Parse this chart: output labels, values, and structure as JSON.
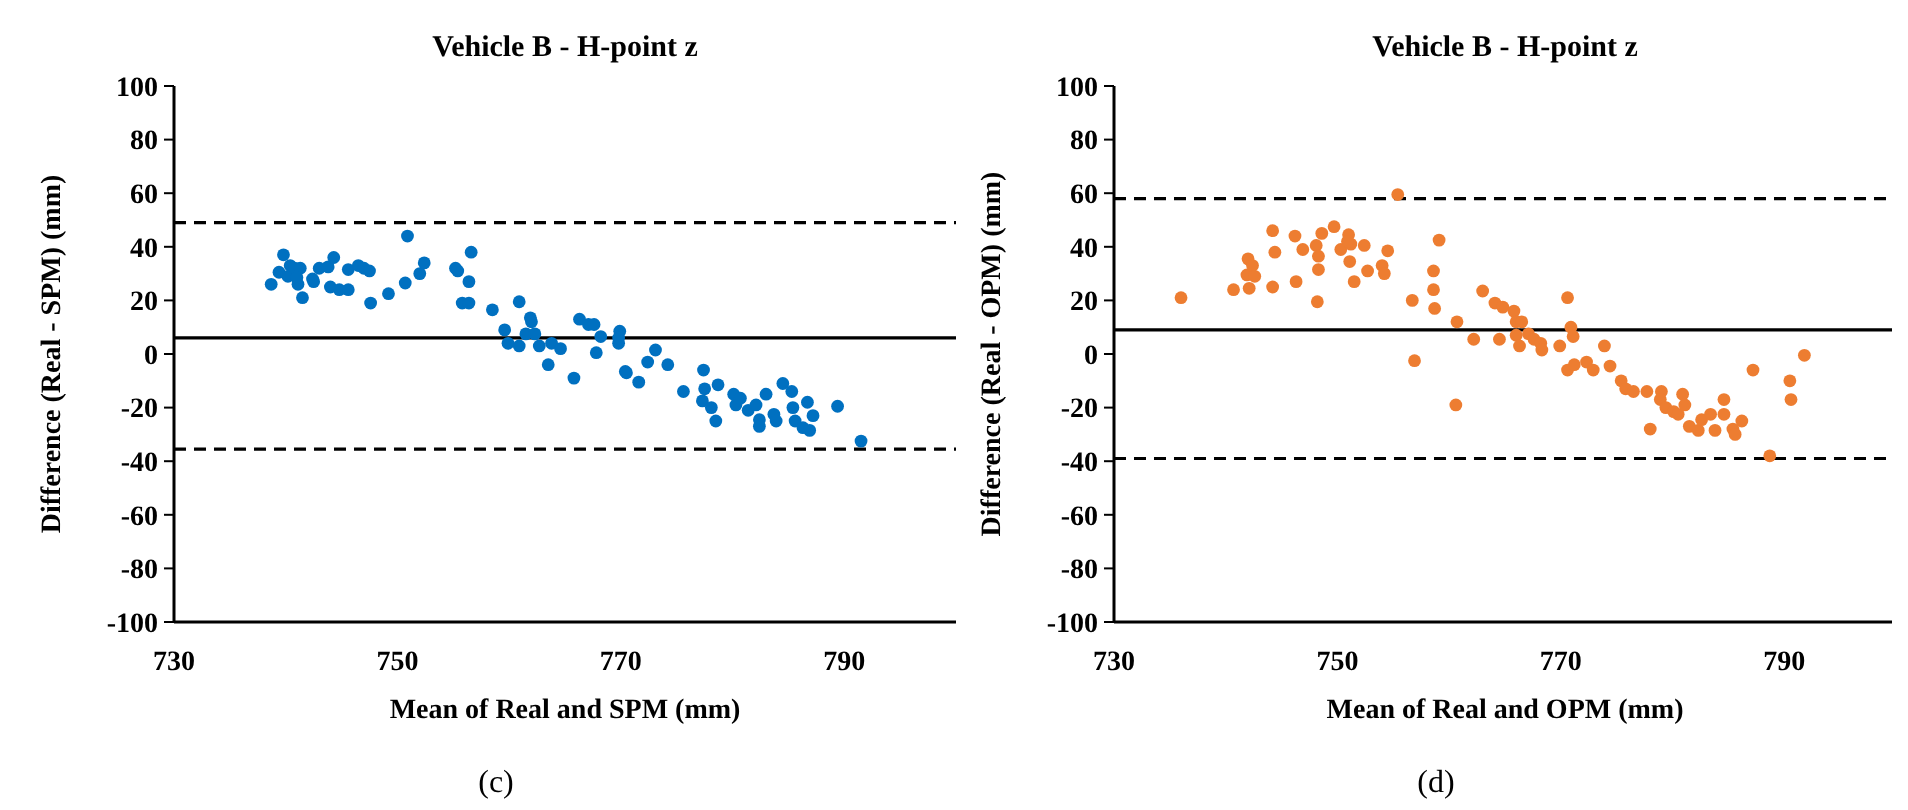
{
  "chart_data": [
    {
      "type": "scatter",
      "title": "Vehicle B - H-point z",
      "xlabel": "Mean of Real and SPM (mm)",
      "ylabel": "Difference (Real - SPM) (mm)",
      "annotations": [
        "(c)"
      ],
      "xlim": [
        730,
        800
      ],
      "xticks": [
        730,
        750,
        770,
        790
      ],
      "ylim": [
        -100,
        100
      ],
      "yticks": [
        -100,
        -80,
        -60,
        -40,
        -20,
        0,
        20,
        40,
        60,
        80,
        100
      ],
      "marker": "circle",
      "grid": false,
      "ref_lines": [
        {
          "axis": "y",
          "value": 49,
          "line_style": "dashed",
          "color": "#000000"
        },
        {
          "axis": "y",
          "value": 6,
          "line_style": "solid",
          "color": "#000000"
        },
        {
          "axis": "y",
          "value": -35.5,
          "line_style": "dashed",
          "color": "#000000"
        }
      ],
      "series": [
        {
          "color": "#0070c0",
          "x": [
            738.7,
            739.4,
            739.8,
            740.4,
            740.2,
            740.8,
            741.1,
            741.3,
            741.5,
            741,
            742.4,
            742.5,
            743,
            743.8,
            744.3,
            744,
            744.8,
            745.6,
            745.6,
            746.5,
            747,
            747.5,
            747.6,
            749.2,
            750.7,
            750.9,
            752,
            752.4,
            755.2,
            755.4,
            756.6,
            756.4,
            755.8,
            756.4,
            758.5,
            759.6,
            759.9,
            760.9,
            760.9,
            761.9,
            762,
            761.5,
            762.3,
            762.7,
            763.5,
            763.8,
            764.6,
            765.8,
            766.3,
            767.1,
            767.6,
            767.8,
            768.2,
            769.8,
            769.9,
            769.8,
            770.4,
            770.5,
            771.6,
            772.4,
            773.1,
            774.2,
            775.6,
            777.4,
            777.5,
            777.3,
            778.1,
            778.5,
            778.7,
            780.1,
            780.3,
            780.7,
            781.4,
            782.1,
            782.4,
            782.4,
            783,
            783.7,
            783.9,
            784.5,
            785.3,
            785.4,
            785.6,
            786.3,
            786.7,
            786.9,
            787.2,
            789.4,
            791.5
          ],
          "values": [
            26,
            30.5,
            37,
            33,
            29,
            32,
            26,
            32,
            21,
            28.5,
            28,
            27,
            32,
            32.5,
            36,
            25,
            24,
            24,
            31.5,
            33,
            32,
            31,
            19,
            22.5,
            26.5,
            44,
            30,
            34,
            32,
            31,
            38,
            27,
            19,
            19,
            16.5,
            9,
            4,
            19.5,
            3,
            13.5,
            12,
            7.5,
            7.5,
            3,
            -4,
            4,
            2,
            -9,
            13,
            11,
            11,
            0.5,
            6.5,
            4,
            8.5,
            6,
            -6.5,
            -7,
            -10.5,
            -3,
            1.5,
            -4,
            -14,
            -6,
            -13,
            -17.5,
            -20,
            -25,
            -11.5,
            -15,
            -19,
            -16.5,
            -21,
            -19,
            -24.5,
            -27,
            -15,
            -22.5,
            -25,
            -11,
            -14,
            -20,
            -25,
            -27.5,
            -18,
            -28.5,
            -23,
            -19.5,
            -32.5
          ]
        }
      ]
    },
    {
      "type": "scatter",
      "title": "Vehicle B - H-point z",
      "xlabel": "Mean of Real and OPM (mm)",
      "ylabel": "Difference (Real - OPM) (mm)",
      "annotations": [
        "(d)"
      ],
      "xlim": [
        730,
        800
      ],
      "xticks": [
        730,
        750,
        770,
        790
      ],
      "ylim": [
        -100,
        100
      ],
      "yticks": [
        -100,
        -80,
        -60,
        -40,
        -20,
        0,
        20,
        40,
        60,
        80,
        100
      ],
      "marker": "circle",
      "grid": false,
      "ref_lines": [
        {
          "axis": "y",
          "value": 58,
          "line_style": "dashed",
          "color": "#000000"
        },
        {
          "axis": "y",
          "value": 9,
          "line_style": "solid",
          "color": "#000000"
        },
        {
          "axis": "y",
          "value": -39,
          "line_style": "dashed",
          "color": "#000000"
        }
      ],
      "series": [
        {
          "color": "#ed7d31",
          "x": [
            736,
            740.7,
            742,
            741.9,
            742.1,
            742.4,
            742.6,
            744.2,
            744.4,
            744.2,
            746.2,
            746.9,
            746.3,
            748.1,
            748.3,
            748.3,
            748.2,
            748.6,
            749.7,
            750.3,
            751,
            751.2,
            750.9,
            751.1,
            751.5,
            752.4,
            752.7,
            754,
            754.2,
            754.5,
            755.4,
            756.7,
            756.9,
            758.6,
            758.6,
            758.7,
            759.1,
            760.6,
            760.7,
            762.2,
            763,
            764.1,
            764.5,
            764.8,
            765.8,
            766,
            766.5,
            766,
            766.3,
            767.1,
            767.6,
            768.2,
            768.3,
            769.9,
            770.6,
            770.9,
            771.1,
            770.6,
            771.2,
            772.3,
            772.9,
            773.9,
            774.4,
            775.4,
            775.8,
            776.5,
            777.7,
            778,
            779,
            778.9,
            779.4,
            780.1,
            780.5,
            780.9,
            781.1,
            781.5,
            782.3,
            782.6,
            783.4,
            783.8,
            784.6,
            784.6,
            785.4,
            785.6,
            786.2,
            787.2,
            788.7,
            790.5,
            790.6,
            791.8
          ],
          "values": [
            21,
            24,
            35.5,
            29.5,
            24.5,
            33,
            29,
            46,
            38,
            25,
            44,
            39,
            27,
            40.5,
            36.5,
            31.5,
            19.5,
            45,
            47.5,
            39,
            44.5,
            41,
            42,
            34.5,
            27,
            40.5,
            31,
            33,
            30,
            38.5,
            59.5,
            20,
            -2.5,
            31,
            24,
            17,
            42.5,
            -19,
            12,
            5.5,
            23.5,
            19,
            5.5,
            17.5,
            16,
            12,
            12,
            7,
            3,
            7.5,
            5.5,
            4,
            1.5,
            3,
            21,
            10,
            6.5,
            -6,
            -4,
            -3,
            -6,
            3,
            -4.5,
            -10,
            -13,
            -14,
            -14,
            -28,
            -14,
            -17,
            -20,
            -21.5,
            -22.5,
            -15,
            -19,
            -27,
            -28.5,
            -24.5,
            -22.5,
            -28.5,
            -22.5,
            -17,
            -28,
            -30,
            -25,
            -6,
            -38,
            -10,
            -17,
            -0.5
          ]
        }
      ]
    }
  ]
}
